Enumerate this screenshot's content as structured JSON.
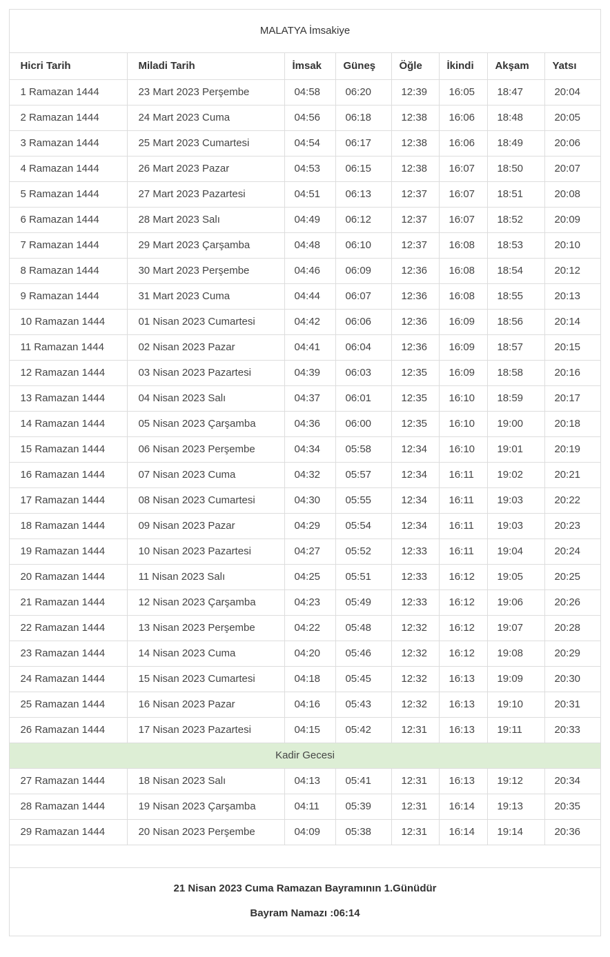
{
  "page": {
    "title": "MALATYA İmsakiye"
  },
  "table": {
    "headers": [
      "Hicri Tarih",
      "Miladi Tarih",
      "İmsak",
      "Güneş",
      "Öğle",
      "İkindi",
      "Akşam",
      "Yatsı"
    ],
    "rows": [
      {
        "type": "day",
        "hicri": "1 Ramazan 1444",
        "miladi": "23 Mart 2023 Perşembe",
        "times": [
          "04:58",
          "06:20",
          "12:39",
          "16:05",
          "18:47",
          "20:04"
        ]
      },
      {
        "type": "day",
        "hicri": "2 Ramazan 1444",
        "miladi": "24 Mart 2023 Cuma",
        "times": [
          "04:56",
          "06:18",
          "12:38",
          "16:06",
          "18:48",
          "20:05"
        ]
      },
      {
        "type": "day",
        "hicri": "3 Ramazan 1444",
        "miladi": "25 Mart 2023 Cumartesi",
        "times": [
          "04:54",
          "06:17",
          "12:38",
          "16:06",
          "18:49",
          "20:06"
        ]
      },
      {
        "type": "day",
        "hicri": "4 Ramazan 1444",
        "miladi": "26 Mart 2023 Pazar",
        "times": [
          "04:53",
          "06:15",
          "12:38",
          "16:07",
          "18:50",
          "20:07"
        ]
      },
      {
        "type": "day",
        "hicri": "5 Ramazan 1444",
        "miladi": "27 Mart 2023 Pazartesi",
        "times": [
          "04:51",
          "06:13",
          "12:37",
          "16:07",
          "18:51",
          "20:08"
        ]
      },
      {
        "type": "day",
        "hicri": "6 Ramazan 1444",
        "miladi": "28 Mart 2023 Salı",
        "times": [
          "04:49",
          "06:12",
          "12:37",
          "16:07",
          "18:52",
          "20:09"
        ]
      },
      {
        "type": "day",
        "hicri": "7 Ramazan 1444",
        "miladi": "29 Mart 2023 Çarşamba",
        "times": [
          "04:48",
          "06:10",
          "12:37",
          "16:08",
          "18:53",
          "20:10"
        ]
      },
      {
        "type": "day",
        "hicri": "8 Ramazan 1444",
        "miladi": "30 Mart 2023 Perşembe",
        "times": [
          "04:46",
          "06:09",
          "12:36",
          "16:08",
          "18:54",
          "20:12"
        ]
      },
      {
        "type": "day",
        "hicri": "9 Ramazan 1444",
        "miladi": "31 Mart 2023 Cuma",
        "times": [
          "04:44",
          "06:07",
          "12:36",
          "16:08",
          "18:55",
          "20:13"
        ]
      },
      {
        "type": "day",
        "hicri": "10 Ramazan 1444",
        "miladi": "01 Nisan 2023 Cumartesi",
        "times": [
          "04:42",
          "06:06",
          "12:36",
          "16:09",
          "18:56",
          "20:14"
        ]
      },
      {
        "type": "day",
        "hicri": "11 Ramazan 1444",
        "miladi": "02 Nisan 2023 Pazar",
        "times": [
          "04:41",
          "06:04",
          "12:36",
          "16:09",
          "18:57",
          "20:15"
        ]
      },
      {
        "type": "day",
        "hicri": "12 Ramazan 1444",
        "miladi": "03 Nisan 2023 Pazartesi",
        "times": [
          "04:39",
          "06:03",
          "12:35",
          "16:09",
          "18:58",
          "20:16"
        ]
      },
      {
        "type": "day",
        "hicri": "13 Ramazan 1444",
        "miladi": "04 Nisan 2023 Salı",
        "times": [
          "04:37",
          "06:01",
          "12:35",
          "16:10",
          "18:59",
          "20:17"
        ]
      },
      {
        "type": "day",
        "hicri": "14 Ramazan 1444",
        "miladi": "05 Nisan 2023 Çarşamba",
        "times": [
          "04:36",
          "06:00",
          "12:35",
          "16:10",
          "19:00",
          "20:18"
        ]
      },
      {
        "type": "day",
        "hicri": "15 Ramazan 1444",
        "miladi": "06 Nisan 2023 Perşembe",
        "times": [
          "04:34",
          "05:58",
          "12:34",
          "16:10",
          "19:01",
          "20:19"
        ]
      },
      {
        "type": "day",
        "hicri": "16 Ramazan 1444",
        "miladi": "07 Nisan 2023 Cuma",
        "times": [
          "04:32",
          "05:57",
          "12:34",
          "16:11",
          "19:02",
          "20:21"
        ]
      },
      {
        "type": "day",
        "hicri": "17 Ramazan 1444",
        "miladi": "08 Nisan 2023 Cumartesi",
        "times": [
          "04:30",
          "05:55",
          "12:34",
          "16:11",
          "19:03",
          "20:22"
        ]
      },
      {
        "type": "day",
        "hicri": "18 Ramazan 1444",
        "miladi": "09 Nisan 2023 Pazar",
        "times": [
          "04:29",
          "05:54",
          "12:34",
          "16:11",
          "19:03",
          "20:23"
        ]
      },
      {
        "type": "day",
        "hicri": "19 Ramazan 1444",
        "miladi": "10 Nisan 2023 Pazartesi",
        "times": [
          "04:27",
          "05:52",
          "12:33",
          "16:11",
          "19:04",
          "20:24"
        ]
      },
      {
        "type": "day",
        "hicri": "20 Ramazan 1444",
        "miladi": "11 Nisan 2023 Salı",
        "times": [
          "04:25",
          "05:51",
          "12:33",
          "16:12",
          "19:05",
          "20:25"
        ]
      },
      {
        "type": "day",
        "hicri": "21 Ramazan 1444",
        "miladi": "12 Nisan 2023 Çarşamba",
        "times": [
          "04:23",
          "05:49",
          "12:33",
          "16:12",
          "19:06",
          "20:26"
        ]
      },
      {
        "type": "day",
        "hicri": "22 Ramazan 1444",
        "miladi": "13 Nisan 2023 Perşembe",
        "times": [
          "04:22",
          "05:48",
          "12:32",
          "16:12",
          "19:07",
          "20:28"
        ]
      },
      {
        "type": "day",
        "hicri": "23 Ramazan 1444",
        "miladi": "14 Nisan 2023 Cuma",
        "times": [
          "04:20",
          "05:46",
          "12:32",
          "16:12",
          "19:08",
          "20:29"
        ]
      },
      {
        "type": "day",
        "hicri": "24 Ramazan 1444",
        "miladi": "15 Nisan 2023 Cumartesi",
        "times": [
          "04:18",
          "05:45",
          "12:32",
          "16:13",
          "19:09",
          "20:30"
        ]
      },
      {
        "type": "day",
        "hicri": "25 Ramazan 1444",
        "miladi": "16 Nisan 2023 Pazar",
        "times": [
          "04:16",
          "05:43",
          "12:32",
          "16:13",
          "19:10",
          "20:31"
        ]
      },
      {
        "type": "day",
        "hicri": "26 Ramazan 1444",
        "miladi": "17 Nisan 2023 Pazartesi",
        "times": [
          "04:15",
          "05:42",
          "12:31",
          "16:13",
          "19:11",
          "20:33"
        ]
      },
      {
        "type": "special",
        "label": "Kadir Gecesi"
      },
      {
        "type": "day",
        "hicri": "27 Ramazan 1444",
        "miladi": "18 Nisan 2023 Salı",
        "times": [
          "04:13",
          "05:41",
          "12:31",
          "16:13",
          "19:12",
          "20:34"
        ]
      },
      {
        "type": "day",
        "hicri": "28 Ramazan 1444",
        "miladi": "19 Nisan 2023 Çarşamba",
        "times": [
          "04:11",
          "05:39",
          "12:31",
          "16:14",
          "19:13",
          "20:35"
        ]
      },
      {
        "type": "day",
        "hicri": "29 Ramazan 1444",
        "miladi": "20 Nisan 2023 Perşembe",
        "times": [
          "04:09",
          "05:38",
          "12:31",
          "16:14",
          "19:14",
          "20:36"
        ]
      }
    ]
  },
  "footer": {
    "line1": "21 Nisan 2023 Cuma Ramazan Bayramının 1.Günüdür",
    "line2": "Bayram Namazı :06:14"
  },
  "colors": {
    "border": "#dddddd",
    "text": "#333333",
    "data_text": "#454545",
    "kadir_row_bg": "#ddeed5",
    "page_bg": "#ffffff"
  }
}
